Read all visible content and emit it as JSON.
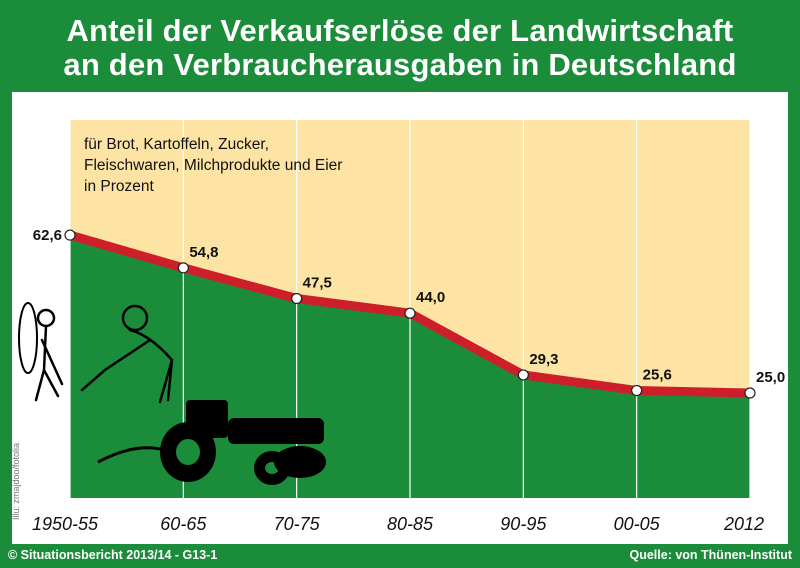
{
  "title_line1": "Anteil der Verkaufserlöse der Landwirtschaft",
  "title_line2": "an den Verbraucherausgaben in Deutschland",
  "note": {
    "line1": "für Brot, Kartoffeln, Zucker,",
    "line2": "Fleischwaren, Milchprodukte und Eier",
    "line3": "in Prozent"
  },
  "credit": "Illu: zmajdoo/fotolia",
  "footer": {
    "left": "© Situationsbericht 2013/14 - G13-1",
    "right": "Quelle: von Thünen-Institut"
  },
  "colors": {
    "frame": "#1a8c3a",
    "sky": "#fde4a4",
    "fill": "#1a8c3a",
    "line": "#cc1f2a",
    "grid": "#ffffff"
  },
  "chart_data": {
    "type": "area",
    "categories": [
      "1950-55",
      "60-65",
      "70-75",
      "80-85",
      "90-95",
      "00-05",
      "2012"
    ],
    "values": [
      62.6,
      54.8,
      47.5,
      44.0,
      29.3,
      25.6,
      25.0
    ],
    "value_labels": [
      "62,6",
      "54,8",
      "47,5",
      "44,0",
      "29,3",
      "25,6",
      "25,0"
    ],
    "ylim": [
      0,
      90
    ],
    "grid": "vertical",
    "title": "Anteil der Verkaufserlöse der Landwirtschaft an den Verbraucherausgaben in Deutschland"
  }
}
